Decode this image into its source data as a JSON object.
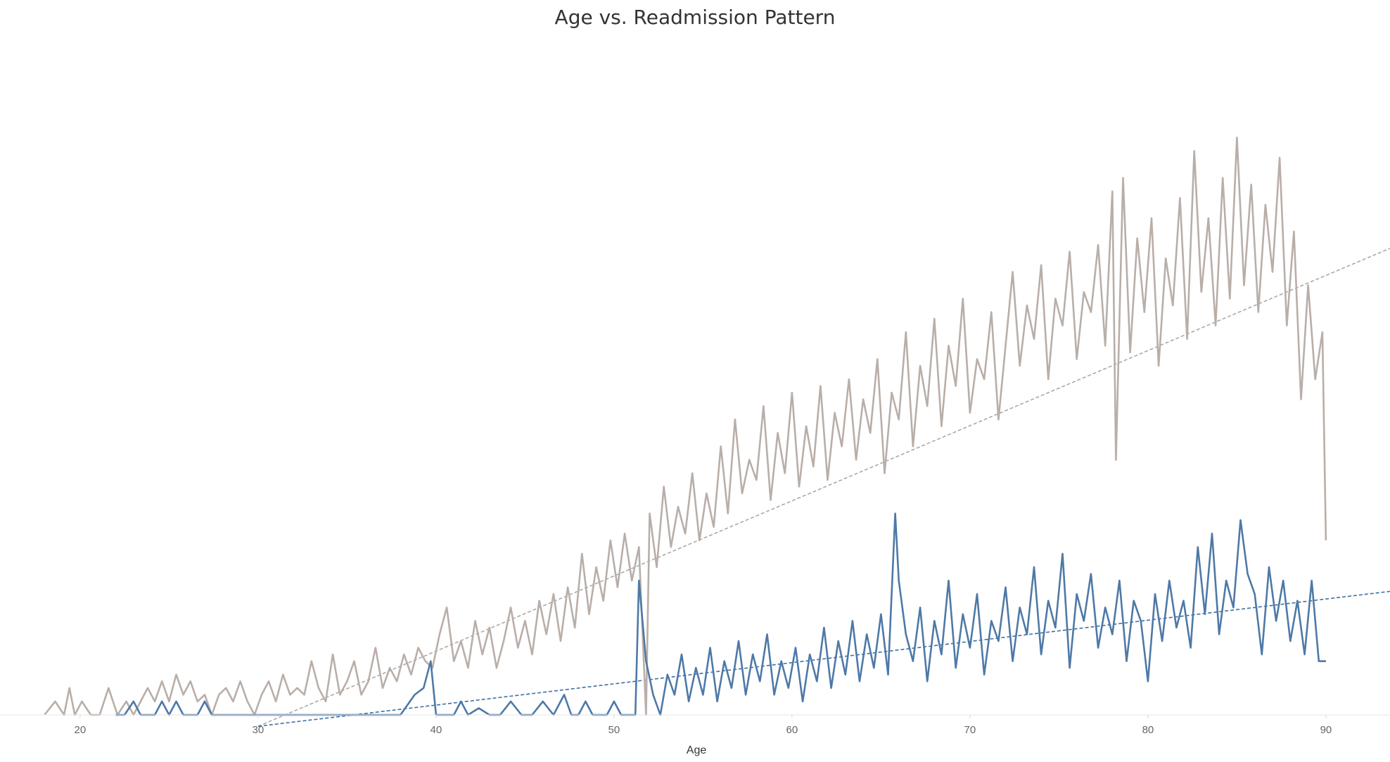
{
  "chart_data": {
    "type": "line",
    "title": "Age vs. Readmission Pattern",
    "xlabel": "Age",
    "ylabel": "",
    "xlim": [
      15.5,
      93.6
    ],
    "ylim": [
      0,
      100
    ],
    "x_ticks": [
      20,
      30,
      40,
      50,
      60,
      70,
      80,
      90
    ],
    "x_tick_labels": [
      "20",
      "30",
      "40",
      "50",
      "60",
      "70",
      "80",
      "90"
    ],
    "grid": false,
    "legend": "none",
    "series": [
      {
        "color": "#b9aea8",
        "line_style": "solid",
        "points": [
          [
            18.0,
            0
          ],
          [
            18.6,
            2
          ],
          [
            19.1,
            0
          ],
          [
            19.4,
            4
          ],
          [
            19.7,
            0
          ],
          [
            20.1,
            2
          ],
          [
            20.6,
            0
          ],
          [
            21.1,
            0
          ],
          [
            21.6,
            4
          ],
          [
            22.1,
            0
          ],
          [
            22.6,
            2
          ],
          [
            23.0,
            0
          ],
          [
            23.4,
            2
          ],
          [
            23.8,
            4
          ],
          [
            24.2,
            2
          ],
          [
            24.6,
            5
          ],
          [
            25.0,
            2
          ],
          [
            25.4,
            6
          ],
          [
            25.8,
            3
          ],
          [
            26.2,
            5
          ],
          [
            26.6,
            2
          ],
          [
            27.0,
            3
          ],
          [
            27.4,
            0
          ],
          [
            27.8,
            3
          ],
          [
            28.2,
            4
          ],
          [
            28.6,
            2
          ],
          [
            29.0,
            5
          ],
          [
            29.4,
            2
          ],
          [
            29.8,
            0
          ],
          [
            30.2,
            3
          ],
          [
            30.6,
            5
          ],
          [
            31.0,
            2
          ],
          [
            31.4,
            6
          ],
          [
            31.8,
            3
          ],
          [
            32.2,
            4
          ],
          [
            32.6,
            3
          ],
          [
            33.0,
            8
          ],
          [
            33.4,
            4
          ],
          [
            33.8,
            2
          ],
          [
            34.2,
            9
          ],
          [
            34.6,
            3
          ],
          [
            35.0,
            5
          ],
          [
            35.4,
            8
          ],
          [
            35.8,
            3
          ],
          [
            36.2,
            5
          ],
          [
            36.6,
            10
          ],
          [
            37.0,
            4
          ],
          [
            37.4,
            7
          ],
          [
            37.8,
            5
          ],
          [
            38.2,
            9
          ],
          [
            38.6,
            6
          ],
          [
            39.0,
            10
          ],
          [
            39.4,
            8
          ],
          [
            39.8,
            7
          ],
          [
            40.2,
            12
          ],
          [
            40.6,
            16
          ],
          [
            41.0,
            8
          ],
          [
            41.4,
            11
          ],
          [
            41.8,
            7
          ],
          [
            42.2,
            14
          ],
          [
            42.6,
            9
          ],
          [
            43.0,
            13
          ],
          [
            43.4,
            7
          ],
          [
            43.8,
            11
          ],
          [
            44.2,
            16
          ],
          [
            44.6,
            10
          ],
          [
            45.0,
            14
          ],
          [
            45.4,
            9
          ],
          [
            45.8,
            17
          ],
          [
            46.2,
            12
          ],
          [
            46.6,
            18
          ],
          [
            47.0,
            11
          ],
          [
            47.4,
            19
          ],
          [
            47.8,
            13
          ],
          [
            48.2,
            24
          ],
          [
            48.6,
            15
          ],
          [
            49.0,
            22
          ],
          [
            49.4,
            17
          ],
          [
            49.8,
            26
          ],
          [
            50.2,
            19
          ],
          [
            50.6,
            27
          ],
          [
            51.0,
            20
          ],
          [
            51.4,
            25
          ],
          [
            51.8,
            0
          ],
          [
            52.0,
            30
          ],
          [
            52.4,
            22
          ],
          [
            52.8,
            34
          ],
          [
            53.2,
            25
          ],
          [
            53.6,
            31
          ],
          [
            54.0,
            27
          ],
          [
            54.4,
            36
          ],
          [
            54.8,
            26
          ],
          [
            55.2,
            33
          ],
          [
            55.6,
            28
          ],
          [
            56.0,
            40
          ],
          [
            56.4,
            30
          ],
          [
            56.8,
            44
          ],
          [
            57.2,
            33
          ],
          [
            57.6,
            38
          ],
          [
            58.0,
            35
          ],
          [
            58.4,
            46
          ],
          [
            58.8,
            32
          ],
          [
            59.2,
            42
          ],
          [
            59.6,
            36
          ],
          [
            60.0,
            48
          ],
          [
            60.4,
            34
          ],
          [
            60.8,
            43
          ],
          [
            61.2,
            37
          ],
          [
            61.6,
            49
          ],
          [
            62.0,
            35
          ],
          [
            62.4,
            45
          ],
          [
            62.8,
            40
          ],
          [
            63.2,
            50
          ],
          [
            63.6,
            38
          ],
          [
            64.0,
            47
          ],
          [
            64.4,
            42
          ],
          [
            64.8,
            53
          ],
          [
            65.2,
            36
          ],
          [
            65.6,
            48
          ],
          [
            66.0,
            44
          ],
          [
            66.4,
            57
          ],
          [
            66.8,
            40
          ],
          [
            67.2,
            52
          ],
          [
            67.6,
            46
          ],
          [
            68.0,
            59
          ],
          [
            68.4,
            43
          ],
          [
            68.8,
            55
          ],
          [
            69.2,
            49
          ],
          [
            69.6,
            62
          ],
          [
            70.0,
            45
          ],
          [
            70.4,
            53
          ],
          [
            70.8,
            50
          ],
          [
            71.2,
            60
          ],
          [
            71.6,
            44
          ],
          [
            72.0,
            55
          ],
          [
            72.4,
            66
          ],
          [
            72.8,
            52
          ],
          [
            73.2,
            61
          ],
          [
            73.6,
            56
          ],
          [
            74.0,
            67
          ],
          [
            74.4,
            50
          ],
          [
            74.8,
            62
          ],
          [
            75.2,
            58
          ],
          [
            75.6,
            69
          ],
          [
            76.0,
            53
          ],
          [
            76.4,
            63
          ],
          [
            76.8,
            60
          ],
          [
            77.2,
            70
          ],
          [
            77.6,
            55
          ],
          [
            78.0,
            78
          ],
          [
            78.2,
            38
          ],
          [
            78.6,
            80
          ],
          [
            79.0,
            54
          ],
          [
            79.4,
            71
          ],
          [
            79.8,
            60
          ],
          [
            80.2,
            74
          ],
          [
            80.6,
            52
          ],
          [
            81.0,
            68
          ],
          [
            81.4,
            61
          ],
          [
            81.8,
            77
          ],
          [
            82.2,
            56
          ],
          [
            82.6,
            84
          ],
          [
            83.0,
            63
          ],
          [
            83.4,
            74
          ],
          [
            83.8,
            58
          ],
          [
            84.2,
            80
          ],
          [
            84.6,
            62
          ],
          [
            85.0,
            86
          ],
          [
            85.4,
            64
          ],
          [
            85.8,
            79
          ],
          [
            86.2,
            60
          ],
          [
            86.6,
            76
          ],
          [
            87.0,
            66
          ],
          [
            87.4,
            83
          ],
          [
            87.8,
            58
          ],
          [
            88.2,
            72
          ],
          [
            88.6,
            47
          ],
          [
            89.0,
            64
          ],
          [
            89.4,
            50
          ],
          [
            89.8,
            57
          ],
          [
            90.0,
            26
          ]
        ]
      },
      {
        "color": "#4e79a7",
        "line_style": "solid",
        "points": [
          [
            22.0,
            0
          ],
          [
            22.5,
            0
          ],
          [
            23.0,
            2
          ],
          [
            23.4,
            0
          ],
          [
            23.8,
            0
          ],
          [
            24.2,
            0
          ],
          [
            24.6,
            2
          ],
          [
            25.0,
            0
          ],
          [
            25.4,
            2
          ],
          [
            25.8,
            0
          ],
          [
            26.2,
            0
          ],
          [
            26.6,
            0
          ],
          [
            27.0,
            2
          ],
          [
            27.4,
            0
          ],
          [
            28.0,
            0
          ],
          [
            30.0,
            0
          ],
          [
            32.0,
            0
          ],
          [
            34.0,
            0
          ],
          [
            36.0,
            0
          ],
          [
            38.0,
            0
          ],
          [
            38.8,
            3
          ],
          [
            39.3,
            4
          ],
          [
            39.7,
            8
          ],
          [
            40.0,
            0
          ],
          [
            40.5,
            0
          ],
          [
            41.0,
            0
          ],
          [
            41.4,
            2
          ],
          [
            41.8,
            0
          ],
          [
            42.4,
            1
          ],
          [
            43.0,
            0
          ],
          [
            43.6,
            0
          ],
          [
            44.2,
            2
          ],
          [
            44.8,
            0
          ],
          [
            45.4,
            0
          ],
          [
            46.0,
            2
          ],
          [
            46.6,
            0
          ],
          [
            47.2,
            3
          ],
          [
            47.6,
            0
          ],
          [
            48.0,
            0
          ],
          [
            48.4,
            2
          ],
          [
            48.8,
            0
          ],
          [
            49.2,
            0
          ],
          [
            49.6,
            0
          ],
          [
            50.0,
            2
          ],
          [
            50.4,
            0
          ],
          [
            50.8,
            0
          ],
          [
            51.2,
            0
          ],
          [
            51.4,
            20
          ],
          [
            51.8,
            8
          ],
          [
            52.2,
            3
          ],
          [
            52.6,
            0
          ],
          [
            53.0,
            6
          ],
          [
            53.4,
            3
          ],
          [
            53.8,
            9
          ],
          [
            54.2,
            2
          ],
          [
            54.6,
            7
          ],
          [
            55.0,
            3
          ],
          [
            55.4,
            10
          ],
          [
            55.8,
            2
          ],
          [
            56.2,
            8
          ],
          [
            56.6,
            4
          ],
          [
            57.0,
            11
          ],
          [
            57.4,
            3
          ],
          [
            57.8,
            9
          ],
          [
            58.2,
            5
          ],
          [
            58.6,
            12
          ],
          [
            59.0,
            3
          ],
          [
            59.4,
            8
          ],
          [
            59.8,
            4
          ],
          [
            60.2,
            10
          ],
          [
            60.6,
            2
          ],
          [
            61.0,
            9
          ],
          [
            61.4,
            5
          ],
          [
            61.8,
            13
          ],
          [
            62.2,
            4
          ],
          [
            62.6,
            11
          ],
          [
            63.0,
            6
          ],
          [
            63.4,
            14
          ],
          [
            63.8,
            5
          ],
          [
            64.2,
            12
          ],
          [
            64.6,
            7
          ],
          [
            65.0,
            15
          ],
          [
            65.4,
            6
          ],
          [
            65.8,
            30
          ],
          [
            66.0,
            20
          ],
          [
            66.4,
            12
          ],
          [
            66.8,
            8
          ],
          [
            67.2,
            16
          ],
          [
            67.6,
            5
          ],
          [
            68.0,
            14
          ],
          [
            68.4,
            9
          ],
          [
            68.8,
            20
          ],
          [
            69.2,
            7
          ],
          [
            69.6,
            15
          ],
          [
            70.0,
            10
          ],
          [
            70.4,
            18
          ],
          [
            70.8,
            6
          ],
          [
            71.2,
            14
          ],
          [
            71.6,
            11
          ],
          [
            72.0,
            19
          ],
          [
            72.4,
            8
          ],
          [
            72.8,
            16
          ],
          [
            73.2,
            12
          ],
          [
            73.6,
            22
          ],
          [
            74.0,
            9
          ],
          [
            74.4,
            17
          ],
          [
            74.8,
            13
          ],
          [
            75.2,
            24
          ],
          [
            75.6,
            7
          ],
          [
            76.0,
            18
          ],
          [
            76.4,
            14
          ],
          [
            76.8,
            21
          ],
          [
            77.2,
            10
          ],
          [
            77.6,
            16
          ],
          [
            78.0,
            12
          ],
          [
            78.4,
            20
          ],
          [
            78.8,
            8
          ],
          [
            79.2,
            17
          ],
          [
            79.6,
            14
          ],
          [
            80.0,
            5
          ],
          [
            80.4,
            18
          ],
          [
            80.8,
            11
          ],
          [
            81.2,
            20
          ],
          [
            81.6,
            13
          ],
          [
            82.0,
            17
          ],
          [
            82.4,
            10
          ],
          [
            82.8,
            25
          ],
          [
            83.2,
            15
          ],
          [
            83.6,
            27
          ],
          [
            84.0,
            12
          ],
          [
            84.4,
            20
          ],
          [
            84.8,
            16
          ],
          [
            85.2,
            29
          ],
          [
            85.6,
            21
          ],
          [
            86.0,
            18
          ],
          [
            86.4,
            9
          ],
          [
            86.8,
            22
          ],
          [
            87.2,
            14
          ],
          [
            87.6,
            20
          ],
          [
            88.0,
            11
          ],
          [
            88.4,
            17
          ],
          [
            88.8,
            9
          ],
          [
            89.2,
            20
          ],
          [
            89.6,
            8
          ],
          [
            90.0,
            8
          ]
        ]
      },
      {
        "color": "#a9a9a9",
        "line_style": "dashed",
        "points": [
          [
            30.0,
            -1.7
          ],
          [
            93.6,
            69.5
          ]
        ]
      },
      {
        "color": "#3d6fa3",
        "line_style": "dashed",
        "points": [
          [
            30.0,
            -1.7
          ],
          [
            93.6,
            18.4
          ]
        ]
      }
    ]
  }
}
